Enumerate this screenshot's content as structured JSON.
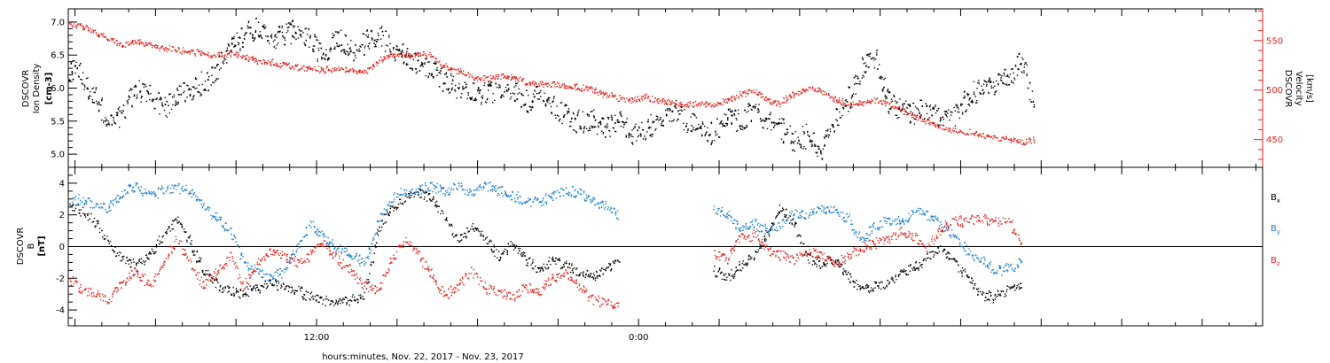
{
  "chart_data": [
    {
      "type": "scatter",
      "title": "",
      "ylabel": "DSCOVR Ion Density",
      "yunit": "[cm-3]",
      "ylim": [
        4.8,
        7.2
      ],
      "yticks": [
        "5.0",
        "5.5",
        "6.0",
        "6.5",
        "7.0"
      ],
      "y2label": "DSCOVR Velocity",
      "y2unit": "[km/s]",
      "y2lim": [
        422,
        582
      ],
      "y2ticks": [
        "450",
        "500",
        "550"
      ],
      "series": [
        {
          "name": "Ion Density",
          "color": "#000000",
          "axis": "left",
          "x_hours": [
            0.0,
            0.5,
            1.0,
            1.5,
            2.0,
            2.5,
            3.0,
            3.5,
            4.0,
            4.5,
            5.0,
            5.5,
            6.0,
            6.5,
            7.0,
            7.5,
            8.0,
            8.5,
            9.0,
            9.5,
            10.0,
            10.5,
            11.0,
            11.5,
            12.0,
            12.5,
            13.0,
            13.5,
            14.0,
            14.5,
            15.0,
            15.5,
            16.0,
            16.5,
            17.0,
            17.5,
            18.0,
            18.5,
            19.0,
            19.5,
            20.0,
            20.5,
            21.0,
            21.5,
            22.0,
            22.5,
            23.0,
            23.5,
            24.0,
            24.5,
            25.0,
            25.5,
            26.0,
            26.5,
            27.0,
            27.5,
            28.0,
            28.5,
            29.0,
            29.5,
            30.0,
            30.5,
            31.0,
            31.5,
            32.0,
            32.5,
            33.0,
            33.5,
            34.0,
            34.5,
            35.0,
            35.5,
            36.0
          ],
          "values": [
            6.3,
            6.2,
            5.8,
            5.5,
            5.6,
            6.0,
            5.9,
            5.7,
            5.9,
            6.0,
            6.1,
            6.3,
            6.6,
            6.8,
            6.9,
            6.7,
            6.8,
            6.9,
            6.7,
            6.5,
            6.8,
            6.6,
            6.7,
            6.8,
            6.6,
            6.5,
            6.4,
            6.3,
            6.1,
            6.0,
            6.0,
            5.9,
            6.0,
            6.0,
            5.8,
            5.9,
            5.7,
            5.6,
            5.5,
            5.5,
            5.4,
            5.5,
            5.3,
            5.4,
            5.5,
            5.7,
            5.5,
            5.4,
            5.3,
            5.6,
            5.5,
            5.7,
            5.5,
            5.4,
            5.2,
            5.3,
            5.0,
            5.5,
            5.8,
            6.3,
            6.5,
            5.8,
            5.7,
            5.6,
            5.7,
            5.5,
            5.6,
            5.9,
            6.0,
            6.0,
            6.2,
            6.4,
            5.7
          ]
        },
        {
          "name": "Velocity",
          "color": "#e5231d",
          "axis": "right",
          "x_hours": [
            0.0,
            0.5,
            1.0,
            1.5,
            2.0,
            2.5,
            3.0,
            3.5,
            4.0,
            4.5,
            5.0,
            5.5,
            6.0,
            6.5,
            7.0,
            7.5,
            8.0,
            8.5,
            9.0,
            9.5,
            10.0,
            10.5,
            11.0,
            11.5,
            12.0,
            12.5,
            13.0,
            13.5,
            14.0,
            14.5,
            15.0,
            15.5,
            16.0,
            16.5,
            17.0,
            17.5,
            18.0,
            18.5,
            19.0,
            19.5,
            20.0,
            20.5,
            21.0,
            21.5,
            22.0,
            22.5,
            23.0,
            23.5,
            24.0,
            24.5,
            25.0,
            25.5,
            26.0,
            26.5,
            27.0,
            27.5,
            28.0,
            28.5,
            29.0,
            29.5,
            30.0,
            30.5,
            31.0,
            31.5,
            32.0,
            32.5,
            33.0,
            33.5,
            34.0,
            34.5,
            35.0,
            35.5,
            36.0
          ],
          "values": [
            566,
            565,
            558,
            552,
            546,
            550,
            546,
            543,
            541,
            540,
            537,
            536,
            537,
            534,
            530,
            528,
            526,
            524,
            522,
            521,
            521,
            520,
            518,
            530,
            536,
            534,
            537,
            535,
            524,
            520,
            514,
            512,
            514,
            514,
            508,
            506,
            506,
            505,
            503,
            500,
            496,
            492,
            491,
            493,
            490,
            487,
            485,
            487,
            485,
            490,
            496,
            500,
            490,
            487,
            497,
            502,
            500,
            492,
            486,
            487,
            490,
            487,
            481,
            474,
            468,
            463,
            459,
            458,
            455,
            452,
            450,
            448,
            450
          ]
        }
      ]
    },
    {
      "type": "scatter",
      "title": "",
      "ylabel": "DSCOVR B",
      "yunit": "[nT]",
      "ylim": [
        -5,
        5
      ],
      "yticks": [
        "-4",
        "-2",
        "0",
        "2",
        "4"
      ],
      "series": [
        {
          "name": "Bx",
          "color": "#000000",
          "x_hours": [
            0.0,
            0.5,
            1.0,
            1.5,
            2.0,
            2.5,
            3.0,
            3.5,
            4.0,
            4.5,
            5.0,
            5.5,
            6.0,
            6.5,
            7.0,
            7.5,
            8.0,
            8.5,
            9.0,
            9.5,
            10.0,
            10.5,
            11.0,
            11.5,
            12.0,
            12.5,
            13.0,
            13.5,
            14.0,
            14.5,
            15.0,
            15.5,
            16.0,
            16.5,
            17.0,
            17.5,
            18.0,
            18.5,
            19.0,
            19.5,
            20.0,
            20.5,
            24.0,
            24.5,
            25.0,
            25.5,
            26.0,
            26.5,
            27.0,
            27.5,
            28.0,
            28.5,
            29.0,
            29.5,
            30.0,
            30.5,
            31.0,
            31.5,
            32.0,
            32.5,
            33.0,
            33.5,
            34.0,
            34.5,
            35.0,
            35.5
          ],
          "values": [
            2.6,
            2.2,
            1.5,
            0.2,
            -0.8,
            -1.2,
            -0.5,
            0.8,
            1.8,
            0.3,
            -1.5,
            -2.4,
            -2.8,
            -2.9,
            -2.6,
            -2.2,
            -2.5,
            -2.8,
            -3.1,
            -3.4,
            -3.5,
            -3.4,
            -3.0,
            1.0,
            2.5,
            3.0,
            3.4,
            3.0,
            1.8,
            0.5,
            1.2,
            0.5,
            -0.6,
            0.2,
            -0.8,
            -1.4,
            -0.8,
            -1.2,
            -1.6,
            -1.8,
            -1.3,
            -1.0,
            -1.5,
            -2.0,
            -1.2,
            -0.6,
            0.8,
            2.5,
            1.5,
            -0.7,
            -1.0,
            -0.8,
            -1.8,
            -2.6,
            -2.5,
            -2.4,
            -1.7,
            -1.3,
            -0.6,
            -0.2,
            -1.0,
            -2.0,
            -3.2,
            -3.1,
            -2.7,
            -2.2
          ]
        },
        {
          "name": "By",
          "color": "#1c7fd2",
          "x_hours": [
            0.0,
            0.5,
            1.0,
            1.5,
            2.0,
            2.5,
            3.0,
            3.5,
            4.0,
            4.5,
            5.0,
            5.5,
            6.0,
            6.5,
            7.0,
            7.5,
            8.0,
            8.5,
            9.0,
            9.5,
            10.0,
            10.5,
            11.0,
            11.5,
            12.0,
            12.5,
            13.0,
            13.5,
            14.0,
            14.5,
            15.0,
            15.5,
            16.0,
            16.5,
            17.0,
            17.5,
            18.0,
            18.5,
            19.0,
            19.5,
            20.0,
            20.5,
            24.0,
            24.5,
            25.0,
            25.5,
            26.0,
            26.5,
            27.0,
            27.5,
            28.0,
            28.5,
            29.0,
            29.5,
            30.0,
            30.5,
            31.0,
            31.5,
            32.0,
            32.5,
            33.0,
            33.5,
            34.0,
            34.5,
            35.0,
            35.5
          ],
          "values": [
            2.8,
            3.0,
            2.6,
            2.5,
            3.5,
            3.8,
            3.2,
            3.6,
            3.7,
            3.5,
            2.6,
            1.8,
            1.0,
            -1.0,
            -1.5,
            -2.0,
            -1.5,
            0.0,
            1.5,
            0.5,
            0.0,
            -0.5,
            -1.0,
            1.5,
            3.0,
            3.5,
            3.6,
            3.8,
            3.5,
            3.8,
            3.5,
            3.9,
            3.6,
            3.2,
            3.0,
            2.8,
            3.2,
            3.6,
            3.4,
            2.8,
            2.6,
            2.0,
            2.4,
            2.0,
            1.2,
            1.5,
            1.0,
            1.4,
            2.2,
            2.0,
            2.4,
            2.3,
            1.8,
            0.5,
            1.3,
            1.7,
            1.5,
            2.3,
            2.0,
            1.5,
            0.6,
            -0.3,
            -0.8,
            -1.5,
            -1.4,
            -1.0
          ]
        },
        {
          "name": "Bz",
          "color": "#e5231d",
          "x_hours": [
            0.0,
            0.5,
            1.0,
            1.5,
            2.0,
            2.5,
            3.0,
            3.5,
            4.0,
            4.5,
            5.0,
            5.5,
            6.0,
            6.5,
            7.0,
            7.5,
            8.0,
            8.5,
            9.0,
            9.5,
            10.0,
            10.5,
            11.0,
            11.5,
            12.0,
            12.5,
            13.0,
            13.5,
            14.0,
            14.5,
            15.0,
            15.5,
            16.0,
            16.5,
            17.0,
            17.5,
            18.0,
            18.5,
            19.0,
            19.5,
            20.0,
            20.5,
            24.0,
            24.5,
            25.0,
            25.5,
            26.0,
            26.5,
            27.0,
            27.5,
            28.0,
            28.5,
            29.0,
            29.5,
            30.0,
            30.5,
            31.0,
            31.5,
            32.0,
            32.5,
            33.0,
            33.5,
            34.0,
            34.5,
            35.0,
            35.5
          ],
          "values": [
            -2.0,
            -2.8,
            -3.0,
            -3.3,
            -2.2,
            -1.5,
            -2.5,
            -1.0,
            0.5,
            -1.0,
            -2.5,
            -1.6,
            -0.5,
            -2.5,
            -1.0,
            -0.2,
            -0.6,
            -1.0,
            -0.5,
            0.3,
            -0.8,
            -1.5,
            -2.5,
            -2.8,
            -0.8,
            0.5,
            -0.5,
            -1.8,
            -3.0,
            -2.4,
            -1.5,
            -2.6,
            -2.8,
            -3.2,
            -2.5,
            -2.8,
            -2.0,
            -1.5,
            -2.5,
            -3.3,
            -3.5,
            -3.6,
            -0.5,
            -0.8,
            0.5,
            0.8,
            -0.2,
            -0.5,
            -0.8,
            -0.3,
            -0.5,
            -1.0,
            -0.6,
            0.0,
            0.2,
            0.5,
            1.0,
            0.6,
            0.0,
            1.2,
            1.6,
            1.6,
            1.8,
            1.6,
            1.7,
            0.0
          ]
        }
      ],
      "legend": [
        "Bx",
        "By",
        "Bz"
      ],
      "legend_placement": "right"
    }
  ],
  "x_axis": {
    "label": "hours:minutes, Nov. 22, 2017 - Nov. 23, 2017",
    "start_hour_of_day": 2.75,
    "span_hours": 44.5,
    "tick_labels": [
      {
        "text": "12:00",
        "hour": 12
      },
      {
        "text": "0:00",
        "hour": 24
      }
    ]
  }
}
